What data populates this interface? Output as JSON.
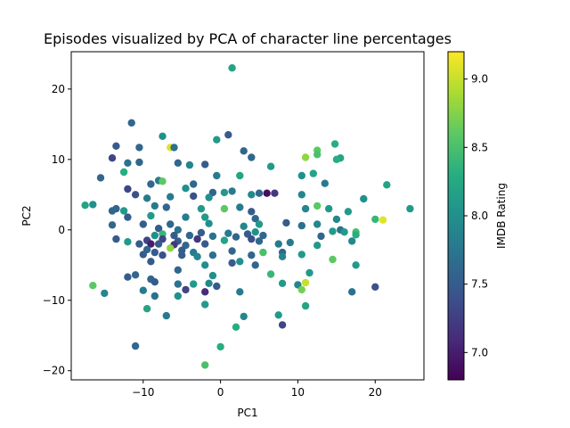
{
  "chart_data": {
    "type": "scatter",
    "title": "Episodes visualized by PCA of character line percentages",
    "xlabel": "PC1",
    "ylabel": "PC2",
    "xlim": [
      -19.3,
      26.3
    ],
    "ylim": [
      -21.3,
      25.3
    ],
    "x_ticks": [
      -10,
      0,
      10,
      20
    ],
    "x_tick_labels": [
      "−10",
      "0",
      "10",
      "20"
    ],
    "y_ticks": [
      -20,
      -10,
      0,
      10,
      20
    ],
    "y_tick_labels": [
      "−20",
      "−10",
      "0",
      "10",
      "20"
    ],
    "grid": false,
    "colorbar": {
      "label": "IMDB Rating",
      "colormap": "viridis",
      "range": [
        6.8,
        9.2
      ],
      "ticks": [
        7.0,
        7.5,
        8.0,
        8.5,
        9.0
      ],
      "tick_labels": [
        "7.0",
        "7.5",
        "8.0",
        "8.5",
        "9.0"
      ]
    },
    "points": [
      {
        "x": 1.5,
        "y": 23.0,
        "rating": 8.2
      },
      {
        "x": -11.5,
        "y": 15.2,
        "rating": 7.6
      },
      {
        "x": 1.0,
        "y": 13.5,
        "rating": 7.5
      },
      {
        "x": -7.5,
        "y": 13.3,
        "rating": 8.0
      },
      {
        "x": -0.5,
        "y": 12.8,
        "rating": 8.1
      },
      {
        "x": 14.8,
        "y": 12.2,
        "rating": 8.3
      },
      {
        "x": -13.5,
        "y": 11.9,
        "rating": 7.5
      },
      {
        "x": -10.5,
        "y": 11.7,
        "rating": 7.6
      },
      {
        "x": -6.5,
        "y": 11.7,
        "rating": 9.1
      },
      {
        "x": -6.0,
        "y": 11.7,
        "rating": 7.7
      },
      {
        "x": 3.0,
        "y": 11.2,
        "rating": 7.6
      },
      {
        "x": 12.5,
        "y": 11.3,
        "rating": 8.6
      },
      {
        "x": 12.5,
        "y": 10.7,
        "rating": 8.5
      },
      {
        "x": -14.0,
        "y": 10.2,
        "rating": 7.3
      },
      {
        "x": 4.0,
        "y": 10.3,
        "rating": 7.6
      },
      {
        "x": 11.0,
        "y": 10.3,
        "rating": 8.8
      },
      {
        "x": 15.5,
        "y": 10.2,
        "rating": 8.2
      },
      {
        "x": 15.0,
        "y": 10.0,
        "rating": 8.3
      },
      {
        "x": -10.5,
        "y": 9.6,
        "rating": 7.6
      },
      {
        "x": -12.0,
        "y": 9.5,
        "rating": 7.7
      },
      {
        "x": -5.5,
        "y": 9.5,
        "rating": 7.6
      },
      {
        "x": -2.0,
        "y": 9.3,
        "rating": 7.5
      },
      {
        "x": -4.0,
        "y": 9.2,
        "rating": 7.9
      },
      {
        "x": 6.5,
        "y": 9.0,
        "rating": 8.1
      },
      {
        "x": -12.5,
        "y": 8.2,
        "rating": 8.3
      },
      {
        "x": -0.5,
        "y": 7.7,
        "rating": 7.8
      },
      {
        "x": 2.5,
        "y": 7.7,
        "rating": 8.2
      },
      {
        "x": 10.5,
        "y": 7.7,
        "rating": 8.0
      },
      {
        "x": 12.0,
        "y": 8.0,
        "rating": 8.2
      },
      {
        "x": -15.5,
        "y": 7.4,
        "rating": 7.6
      },
      {
        "x": -8.0,
        "y": 7.0,
        "rating": 7.8
      },
      {
        "x": -7.5,
        "y": 6.9,
        "rating": 8.6
      },
      {
        "x": -9.0,
        "y": 6.5,
        "rating": 7.6
      },
      {
        "x": -3.5,
        "y": 6.5,
        "rating": 7.6
      },
      {
        "x": 21.5,
        "y": 6.4,
        "rating": 8.2
      },
      {
        "x": 13.5,
        "y": 6.6,
        "rating": 7.8
      },
      {
        "x": -4.5,
        "y": 5.9,
        "rating": 8.0
      },
      {
        "x": -12.0,
        "y": 5.8,
        "rating": 7.3
      },
      {
        "x": -11.0,
        "y": 5.0,
        "rating": 7.4
      },
      {
        "x": -3.5,
        "y": 4.8,
        "rating": 7.4
      },
      {
        "x": -1.0,
        "y": 5.3,
        "rating": 7.6
      },
      {
        "x": 0.5,
        "y": 5.3,
        "rating": 8.1
      },
      {
        "x": 1.5,
        "y": 5.5,
        "rating": 7.8
      },
      {
        "x": 4.0,
        "y": 5.0,
        "rating": 7.9
      },
      {
        "x": 5.0,
        "y": 5.2,
        "rating": 7.6
      },
      {
        "x": 6.0,
        "y": 5.2,
        "rating": 6.9
      },
      {
        "x": 7.0,
        "y": 5.2,
        "rating": 7.2
      },
      {
        "x": 10.5,
        "y": 5.0,
        "rating": 7.9
      },
      {
        "x": -1.5,
        "y": 4.6,
        "rating": 8.0
      },
      {
        "x": -6.5,
        "y": 4.7,
        "rating": 7.8
      },
      {
        "x": 18.5,
        "y": 4.4,
        "rating": 8.0
      },
      {
        "x": -9.5,
        "y": 4.5,
        "rating": 7.8
      },
      {
        "x": -16.5,
        "y": 3.6,
        "rating": 8.0
      },
      {
        "x": -17.5,
        "y": 3.5,
        "rating": 8.2
      },
      {
        "x": -8.5,
        "y": 3.4,
        "rating": 7.8
      },
      {
        "x": -7.0,
        "y": 3.2,
        "rating": 7.6
      },
      {
        "x": -2.5,
        "y": 3.0,
        "rating": 8.1
      },
      {
        "x": 0.5,
        "y": 3.0,
        "rating": 8.6
      },
      {
        "x": 2.5,
        "y": 3.2,
        "rating": 7.8
      },
      {
        "x": 11.0,
        "y": 3.0,
        "rating": 7.9
      },
      {
        "x": 12.5,
        "y": 3.4,
        "rating": 8.6
      },
      {
        "x": 14.0,
        "y": 3.0,
        "rating": 8.1
      },
      {
        "x": 24.5,
        "y": 3.0,
        "rating": 8.1
      },
      {
        "x": -12.5,
        "y": 2.7,
        "rating": 8.1
      },
      {
        "x": -14.0,
        "y": 2.7,
        "rating": 7.6
      },
      {
        "x": -13.5,
        "y": 3.0,
        "rating": 7.6
      },
      {
        "x": 4.0,
        "y": 2.6,
        "rating": 7.5
      },
      {
        "x": 16.5,
        "y": 2.6,
        "rating": 8.1
      },
      {
        "x": -12.0,
        "y": 1.8,
        "rating": 7.5
      },
      {
        "x": -9.0,
        "y": 2.0,
        "rating": 8.1
      },
      {
        "x": -4.5,
        "y": 1.8,
        "rating": 7.8
      },
      {
        "x": -2.0,
        "y": 1.8,
        "rating": 8.1
      },
      {
        "x": 4.5,
        "y": 1.6,
        "rating": 7.6
      },
      {
        "x": 15.0,
        "y": 1.5,
        "rating": 7.9
      },
      {
        "x": 20.0,
        "y": 1.5,
        "rating": 8.4
      },
      {
        "x": 21.0,
        "y": 1.4,
        "rating": 9.1
      },
      {
        "x": -14.0,
        "y": 0.7,
        "rating": 7.6
      },
      {
        "x": -10.0,
        "y": 0.8,
        "rating": 7.5
      },
      {
        "x": -6.5,
        "y": 0.8,
        "rating": 7.6
      },
      {
        "x": -1.5,
        "y": 0.9,
        "rating": 8.0
      },
      {
        "x": 3.0,
        "y": 0.5,
        "rating": 7.9
      },
      {
        "x": 5.0,
        "y": 0.8,
        "rating": 8.1
      },
      {
        "x": 8.5,
        "y": 1.0,
        "rating": 7.5
      },
      {
        "x": 10.5,
        "y": 0.6,
        "rating": 7.7
      },
      {
        "x": 12.5,
        "y": 0.8,
        "rating": 7.9
      },
      {
        "x": -8.0,
        "y": 0.2,
        "rating": 7.5
      },
      {
        "x": -5.5,
        "y": 0.0,
        "rating": 7.7
      },
      {
        "x": -2.5,
        "y": -0.4,
        "rating": 7.5
      },
      {
        "x": 1.0,
        "y": -0.5,
        "rating": 7.8
      },
      {
        "x": 4.5,
        "y": -0.3,
        "rating": 8.0
      },
      {
        "x": 14.5,
        "y": -0.2,
        "rating": 8.1
      },
      {
        "x": 15.5,
        "y": 0.0,
        "rating": 7.7
      },
      {
        "x": 16.0,
        "y": -0.3,
        "rating": 8.1
      },
      {
        "x": 17.5,
        "y": -0.3,
        "rating": 8.5
      },
      {
        "x": 17.5,
        "y": -0.7,
        "rating": 8.3
      },
      {
        "x": -8.5,
        "y": -0.8,
        "rating": 8.0
      },
      {
        "x": -7.5,
        "y": -0.6,
        "rating": 8.4
      },
      {
        "x": -6.0,
        "y": -0.8,
        "rating": 7.5
      },
      {
        "x": -4.0,
        "y": -0.8,
        "rating": 7.6
      },
      {
        "x": -1.0,
        "y": -0.9,
        "rating": 7.7
      },
      {
        "x": 2.0,
        "y": -1.0,
        "rating": 7.6
      },
      {
        "x": 3.5,
        "y": -0.6,
        "rating": 7.5
      },
      {
        "x": 5.5,
        "y": -0.8,
        "rating": 7.6
      },
      {
        "x": 13.0,
        "y": -0.9,
        "rating": 7.6
      },
      {
        "x": -13.5,
        "y": -1.3,
        "rating": 7.5
      },
      {
        "x": -12.0,
        "y": -1.7,
        "rating": 8.1
      },
      {
        "x": -9.5,
        "y": -1.5,
        "rating": 7.3
      },
      {
        "x": -7.5,
        "y": -1.3,
        "rating": 7.3
      },
      {
        "x": -5.5,
        "y": -1.6,
        "rating": 7.5
      },
      {
        "x": -3.0,
        "y": -1.3,
        "rating": 7.2
      },
      {
        "x": 0.5,
        "y": -1.5,
        "rating": 8.2
      },
      {
        "x": 4.0,
        "y": -1.3,
        "rating": 7.4
      },
      {
        "x": 5.0,
        "y": -1.6,
        "rating": 7.6
      },
      {
        "x": 9.0,
        "y": -1.8,
        "rating": 7.8
      },
      {
        "x": 17.0,
        "y": -1.6,
        "rating": 7.9
      },
      {
        "x": -10.5,
        "y": -2.0,
        "rating": 7.5
      },
      {
        "x": -9.0,
        "y": -2.0,
        "rating": 7.0
      },
      {
        "x": -8.0,
        "y": -2.0,
        "rating": 7.5
      },
      {
        "x": -6.0,
        "y": -2.1,
        "rating": 7.2
      },
      {
        "x": -4.5,
        "y": -2.2,
        "rating": 7.6
      },
      {
        "x": -2.0,
        "y": -2.0,
        "rating": 7.5
      },
      {
        "x": 7.5,
        "y": -2.0,
        "rating": 7.8
      },
      {
        "x": 12.5,
        "y": -2.2,
        "rating": 8.1
      },
      {
        "x": -9.5,
        "y": -2.8,
        "rating": 7.6
      },
      {
        "x": -8.5,
        "y": -3.2,
        "rating": 7.5
      },
      {
        "x": -6.5,
        "y": -2.6,
        "rating": 8.8
      },
      {
        "x": -5.0,
        "y": -2.9,
        "rating": 7.5
      },
      {
        "x": -3.5,
        "y": -3.2,
        "rating": 7.8
      },
      {
        "x": 1.5,
        "y": -3.0,
        "rating": 7.6
      },
      {
        "x": 5.5,
        "y": -3.2,
        "rating": 8.5
      },
      {
        "x": 8.0,
        "y": -3.2,
        "rating": 7.6
      },
      {
        "x": 10.5,
        "y": -3.5,
        "rating": 8.1
      },
      {
        "x": -10.0,
        "y": -3.5,
        "rating": 7.5
      },
      {
        "x": -7.5,
        "y": -3.6,
        "rating": 7.4
      },
      {
        "x": -5.0,
        "y": -3.6,
        "rating": 7.5
      },
      {
        "x": -3.0,
        "y": -3.8,
        "rating": 7.9
      },
      {
        "x": -1.0,
        "y": -3.6,
        "rating": 7.7
      },
      {
        "x": 4.0,
        "y": -3.6,
        "rating": 7.6
      },
      {
        "x": 8.0,
        "y": -3.8,
        "rating": 7.9
      },
      {
        "x": 14.5,
        "y": -4.2,
        "rating": 8.6
      },
      {
        "x": -9.0,
        "y": -4.5,
        "rating": 7.5
      },
      {
        "x": -2.0,
        "y": -5.0,
        "rating": 8.0
      },
      {
        "x": 1.5,
        "y": -4.7,
        "rating": 7.5
      },
      {
        "x": 2.5,
        "y": -4.5,
        "rating": 8.0
      },
      {
        "x": 4.5,
        "y": -5.0,
        "rating": 7.6
      },
      {
        "x": 17.5,
        "y": -5.0,
        "rating": 8.1
      },
      {
        "x": -5.5,
        "y": -5.7,
        "rating": 7.6
      },
      {
        "x": -1.0,
        "y": -6.5,
        "rating": 8.0
      },
      {
        "x": 11.5,
        "y": -6.1,
        "rating": 8.1
      },
      {
        "x": -12.0,
        "y": -6.7,
        "rating": 7.5
      },
      {
        "x": -11.0,
        "y": -6.4,
        "rating": 7.6
      },
      {
        "x": -9.0,
        "y": -7.0,
        "rating": 7.6
      },
      {
        "x": -8.5,
        "y": -7.4,
        "rating": 7.5
      },
      {
        "x": -5.5,
        "y": -7.7,
        "rating": 7.7
      },
      {
        "x": -3.5,
        "y": -7.7,
        "rating": 8.1
      },
      {
        "x": -1.5,
        "y": -7.6,
        "rating": 7.9
      },
      {
        "x": -0.5,
        "y": -8.0,
        "rating": 7.5
      },
      {
        "x": 6.5,
        "y": -6.3,
        "rating": 8.4
      },
      {
        "x": 8.0,
        "y": -7.6,
        "rating": 8.1
      },
      {
        "x": 10.0,
        "y": -7.8,
        "rating": 7.9
      },
      {
        "x": 11.0,
        "y": -7.5,
        "rating": 9.0
      },
      {
        "x": -16.5,
        "y": -7.9,
        "rating": 8.6
      },
      {
        "x": -4.5,
        "y": -8.5,
        "rating": 7.3
      },
      {
        "x": -2.0,
        "y": -8.8,
        "rating": 7.1
      },
      {
        "x": 2.5,
        "y": -8.8,
        "rating": 7.8
      },
      {
        "x": 10.5,
        "y": -8.5,
        "rating": 8.7
      },
      {
        "x": 17.0,
        "y": -8.8,
        "rating": 7.7
      },
      {
        "x": 20.0,
        "y": -8.1,
        "rating": 7.4
      },
      {
        "x": -15.0,
        "y": -9.0,
        "rating": 7.9
      },
      {
        "x": -10.0,
        "y": -8.6,
        "rating": 7.8
      },
      {
        "x": -8.5,
        "y": -9.4,
        "rating": 7.7
      },
      {
        "x": -5.5,
        "y": -9.4,
        "rating": 8.0
      },
      {
        "x": -2.0,
        "y": -10.6,
        "rating": 8.1
      },
      {
        "x": -9.5,
        "y": -11.2,
        "rating": 8.2
      },
      {
        "x": 11.0,
        "y": -10.8,
        "rating": 8.2
      },
      {
        "x": -7.0,
        "y": -12.2,
        "rating": 7.8
      },
      {
        "x": 3.0,
        "y": -12.3,
        "rating": 7.9
      },
      {
        "x": 7.5,
        "y": -12.1,
        "rating": 8.1
      },
      {
        "x": 2.0,
        "y": -13.8,
        "rating": 8.3
      },
      {
        "x": 8.0,
        "y": -13.5,
        "rating": 7.3
      },
      {
        "x": -11.0,
        "y": -16.5,
        "rating": 7.6
      },
      {
        "x": 0.0,
        "y": -16.6,
        "rating": 8.3
      },
      {
        "x": -2.0,
        "y": -19.2,
        "rating": 8.5
      }
    ]
  }
}
